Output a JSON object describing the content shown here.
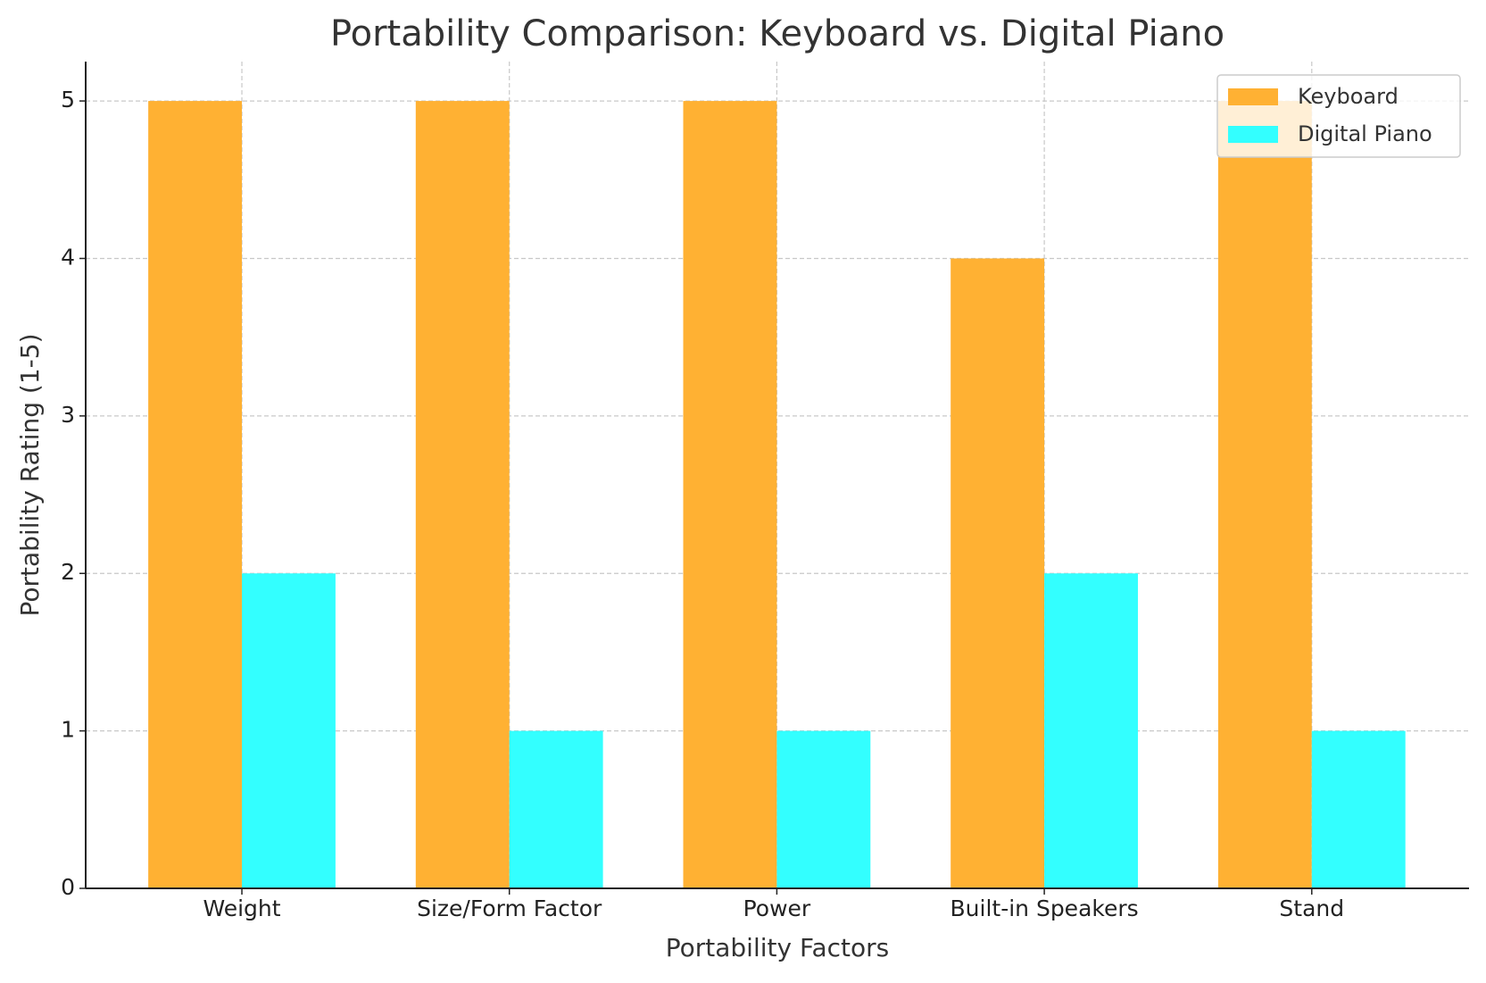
{
  "chart_data": {
    "type": "bar",
    "title": "Portability Comparison: Keyboard vs. Digital Piano",
    "x_label": "Portability Factors",
    "y_label": "Portability Rating (1-5)",
    "categories": [
      "Weight",
      "Size/Form Factor",
      "Power",
      "Built-in Speakers",
      "Stand"
    ],
    "series": [
      {
        "name": "Keyboard",
        "color": "#ffb133",
        "values": [
          5,
          5,
          5,
          4,
          5
        ]
      },
      {
        "name": "Digital Piano",
        "color": "#33ffff",
        "values": [
          2,
          1,
          1,
          2,
          1
        ]
      }
    ],
    "ylim": [
      0,
      5.25
    ],
    "yticks": [
      0,
      1,
      2,
      3,
      4,
      5
    ],
    "grid": true,
    "legend": "upper right"
  }
}
